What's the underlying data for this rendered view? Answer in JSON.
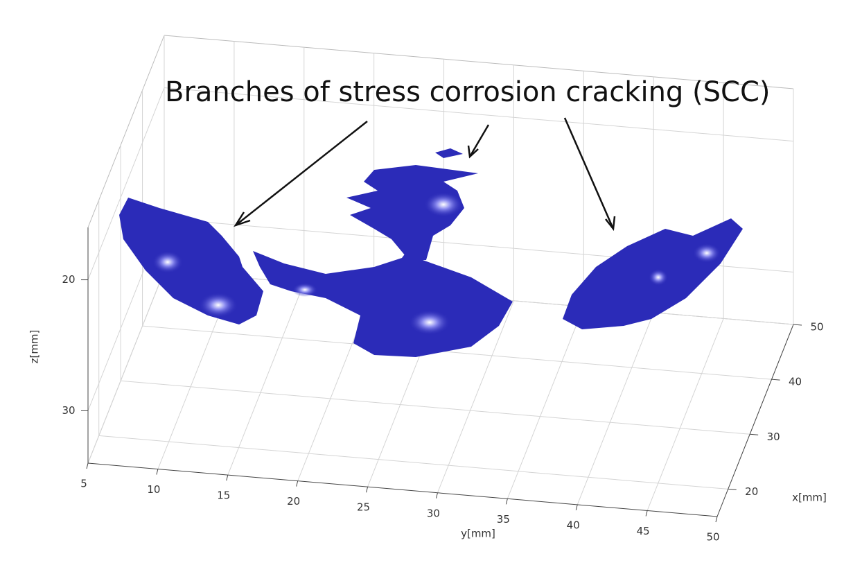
{
  "chart_data": {
    "type": "isosurface3d",
    "annotation": "Branches of stress corrosion cracking (SCC)",
    "xlabel": "x[mm]",
    "ylabel": "y[mm]",
    "zlabel": "z[mm]",
    "xlim": [
      15,
      50
    ],
    "xticks": [
      20,
      30,
      40,
      50
    ],
    "ylim": [
      5,
      50
    ],
    "yticks": [
      5,
      10,
      15,
      20,
      25,
      30,
      35,
      40,
      45,
      50
    ],
    "zlim": [
      16,
      34
    ],
    "zticks": [
      20,
      30
    ],
    "zdir": "reverse",
    "grid": true,
    "color": "#2b2bb8"
  }
}
